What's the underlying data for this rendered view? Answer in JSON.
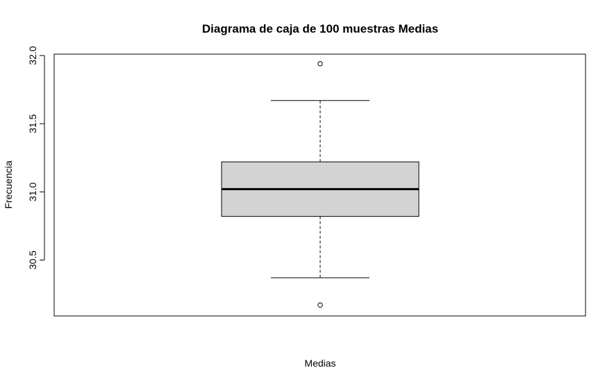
{
  "chart_data": {
    "type": "box",
    "title": "Diagrama de caja de 100 muestras Medias",
    "xlabel": "Medias",
    "ylabel": "Frecuencia",
    "ylim": [
      30.09,
      32.01
    ],
    "y_ticks": [
      30.5,
      31.0,
      31.5,
      32.0
    ],
    "y_tick_labels": [
      "30.5",
      "31.0",
      "31.5",
      "32.0"
    ],
    "box": {
      "whisker_low": 30.37,
      "q1": 30.82,
      "median": 31.02,
      "q3": 31.22,
      "whisker_high": 31.67
    },
    "outliers": [
      31.94,
      30.17
    ],
    "box_fill": "#d3d3d3",
    "grid": false
  }
}
